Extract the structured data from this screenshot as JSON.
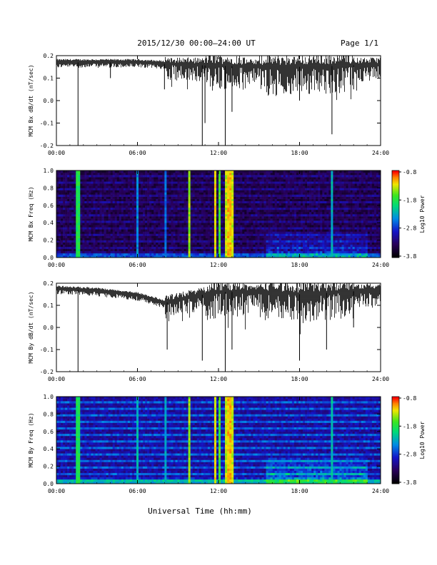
{
  "header": {
    "title": "2015/12/30  00:00–24:00 UT",
    "page": "Page 1/1"
  },
  "footer": {
    "xlabel": "Universal Time (hh:mm)"
  },
  "chart_data": [
    {
      "type": "line",
      "ylabel": "MCM Bx dB/dt (nT/sec)",
      "xlim": [
        0,
        24
      ],
      "ylim": [
        -0.2,
        0.2
      ],
      "xticks": [
        "00:00",
        "06:00",
        "12:00",
        "18:00",
        "24:00"
      ],
      "yticks": [
        "-0.2",
        "-0.1",
        "0.0",
        "0.1",
        "0.2"
      ],
      "series": [
        {
          "baseline": [
            [
              0,
              0.17
            ],
            [
              6,
              0.17
            ],
            [
              9,
              0.16
            ],
            [
              12,
              0.155
            ],
            [
              15,
              0.15
            ],
            [
              18,
              0.15
            ],
            [
              24,
              0.16
            ]
          ],
          "spikes": [
            [
              1.6,
              -0.2
            ],
            [
              4.0,
              0.1
            ],
            [
              8.0,
              0.05
            ],
            [
              10.8,
              -0.2
            ],
            [
              11.0,
              -0.1
            ],
            [
              12.5,
              -0.2
            ],
            [
              13.0,
              -0.05
            ],
            [
              18.0,
              0.0
            ],
            [
              20.4,
              -0.15
            ],
            [
              22.0,
              0.05
            ]
          ]
        }
      ]
    },
    {
      "type": "heatmap",
      "ylabel": "MCM Bx Freq (Hz)",
      "xlim": [
        0,
        24
      ],
      "ylim": [
        0,
        1.0
      ],
      "xticks": [
        "00:00",
        "06:00",
        "12:00",
        "18:00",
        "24:00"
      ],
      "yticks": [
        "0.0",
        "0.2",
        "0.4",
        "0.6",
        "0.8",
        "1.0"
      ],
      "colorbar": {
        "label": "Log10 Power",
        "ticks": [
          "-0.8",
          "-1.8",
          "-2.8",
          "-3.8"
        ],
        "range": [
          -3.8,
          -0.8
        ]
      },
      "vertical_bands": [
        [
          1.6,
          -2.0
        ],
        [
          6.0,
          -2.6
        ],
        [
          8.1,
          -2.7
        ],
        [
          9.8,
          -1.6
        ],
        [
          11.8,
          -1.4
        ],
        [
          12.1,
          -1.8
        ],
        [
          12.6,
          -1.5
        ],
        [
          12.8,
          -1.3
        ],
        [
          13.0,
          -1.5
        ],
        [
          20.4,
          -2.4
        ]
      ]
    },
    {
      "type": "line",
      "ylabel": "MCM By dB/dt (nT/sec)",
      "xlim": [
        0,
        24
      ],
      "ylim": [
        -0.2,
        0.2
      ],
      "xticks": [
        "00:00",
        "06:00",
        "12:00",
        "18:00",
        "24:00"
      ],
      "yticks": [
        "-0.2",
        "-0.1",
        "0.0",
        "0.1",
        "0.2"
      ],
      "series": [
        {
          "baseline": [
            [
              0,
              0.175
            ],
            [
              3,
              0.165
            ],
            [
              6,
              0.145
            ],
            [
              8,
              0.11
            ],
            [
              10,
              0.14
            ],
            [
              12,
              0.16
            ],
            [
              15,
              0.16
            ],
            [
              18,
              0.15
            ],
            [
              24,
              0.17
            ]
          ],
          "spikes": [
            [
              1.6,
              -0.2
            ],
            [
              8.2,
              -0.1
            ],
            [
              10.8,
              -0.15
            ],
            [
              12.5,
              -0.2
            ],
            [
              13.0,
              -0.1
            ],
            [
              18.0,
              -0.15
            ],
            [
              20.0,
              -0.1
            ],
            [
              22.0,
              0.0
            ]
          ]
        }
      ]
    },
    {
      "type": "heatmap",
      "ylabel": "MCM By Freq (Hz)",
      "xlim": [
        0,
        24
      ],
      "ylim": [
        0,
        1.0
      ],
      "xticks": [
        "00:00",
        "06:00",
        "12:00",
        "18:00",
        "24:00"
      ],
      "yticks": [
        "0.0",
        "0.2",
        "0.4",
        "0.6",
        "0.8",
        "1.0"
      ],
      "colorbar": {
        "label": "Log10 Power",
        "ticks": [
          "-0.8",
          "-1.8",
          "-2.8",
          "-3.8"
        ],
        "range": [
          -3.8,
          -0.8
        ]
      },
      "vertical_bands": [
        [
          1.6,
          -2.0
        ],
        [
          6.0,
          -2.4
        ],
        [
          8.1,
          -2.5
        ],
        [
          9.8,
          -1.6
        ],
        [
          11.8,
          -1.4
        ],
        [
          12.1,
          -1.8
        ],
        [
          12.6,
          -1.5
        ],
        [
          12.8,
          -1.3
        ],
        [
          13.0,
          -1.5
        ],
        [
          20.4,
          -2.3
        ]
      ]
    }
  ]
}
